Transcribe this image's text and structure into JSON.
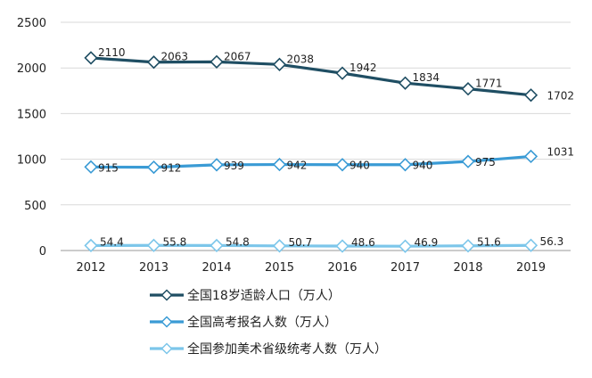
{
  "chart_data": {
    "type": "line",
    "categories": [
      "2012",
      "2013",
      "2014",
      "2015",
      "2016",
      "2017",
      "2018",
      "2019"
    ],
    "ylim": [
      0,
      2500
    ],
    "yticks": [
      0,
      500,
      1000,
      1500,
      2000,
      2500
    ],
    "grid": true,
    "legend_position": "bottom",
    "series": [
      {
        "name": "全国18岁适龄人口（万人）",
        "values": [
          2110,
          2063,
          2067,
          2038,
          1942,
          1834,
          1771,
          1702
        ],
        "labels": [
          "2110",
          "2063",
          "2067",
          "2038",
          "1942",
          "1834",
          "1771",
          "1702"
        ],
        "color": "#1f4e63"
      },
      {
        "name": "全国高考报名人数（万人）",
        "values": [
          915,
          912,
          939,
          942,
          940,
          940,
          975,
          1031
        ],
        "labels": [
          "915",
          "912",
          "939",
          "942",
          "940",
          "940",
          "975",
          "1031"
        ],
        "color": "#3a9bd5"
      },
      {
        "name": "全国参加美术省级统考人数（万人）",
        "values": [
          54.4,
          55.8,
          54.8,
          50.7,
          48.6,
          46.9,
          51.6,
          56.3
        ],
        "labels": [
          "54.4",
          "55.8",
          "54.8",
          "50.7",
          "48.6",
          "46.9",
          "51.6",
          "56.3"
        ],
        "color": "#7cc6ea"
      }
    ]
  }
}
